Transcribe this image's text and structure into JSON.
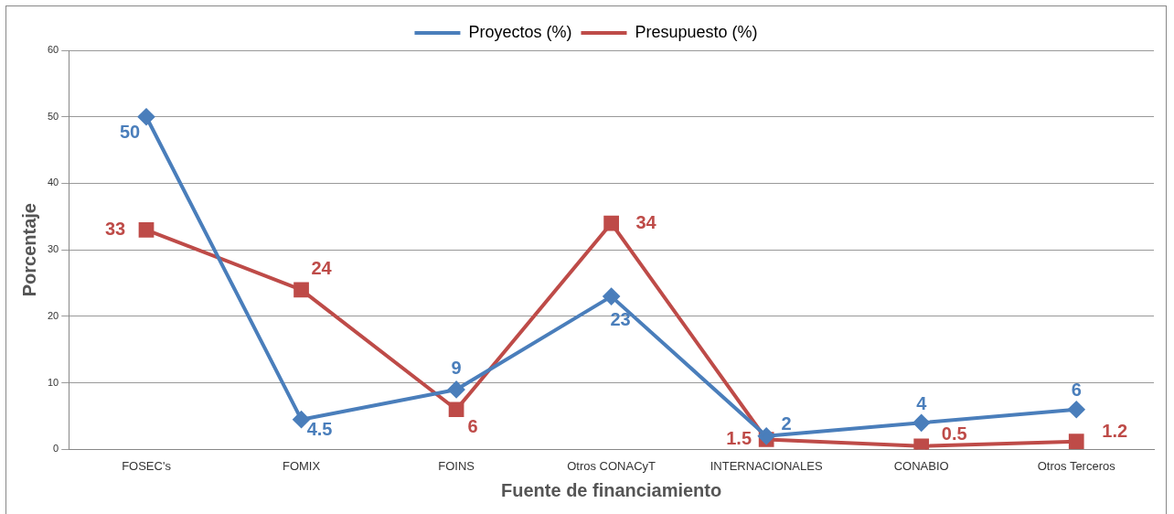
{
  "chart_data": {
    "type": "line",
    "xlabel": "Fuente de financiamiento",
    "ylabel": "Porcentaje",
    "categories": [
      "FOSEC's",
      "FOMIX",
      "FOINS",
      "Otros CONACyT",
      "INTERNACIONALES",
      "CONABIO",
      "Otros Terceros"
    ],
    "series": [
      {
        "name": "Proyectos (%)",
        "color": "#4a7ebb",
        "marker": "diamond",
        "values": [
          50,
          4.5,
          9,
          23,
          2,
          4,
          6
        ]
      },
      {
        "name": "Presupuesto (%)",
        "color": "#be4b48",
        "marker": "square",
        "values": [
          33,
          24,
          6,
          34,
          1.5,
          0.5,
          1.2
        ]
      }
    ],
    "ylim": [
      0,
      60
    ],
    "yticks": [
      0,
      10,
      20,
      30,
      40,
      50,
      60
    ],
    "grid": "y",
    "legend": "top",
    "data_labels": true,
    "line_style": "solid"
  }
}
